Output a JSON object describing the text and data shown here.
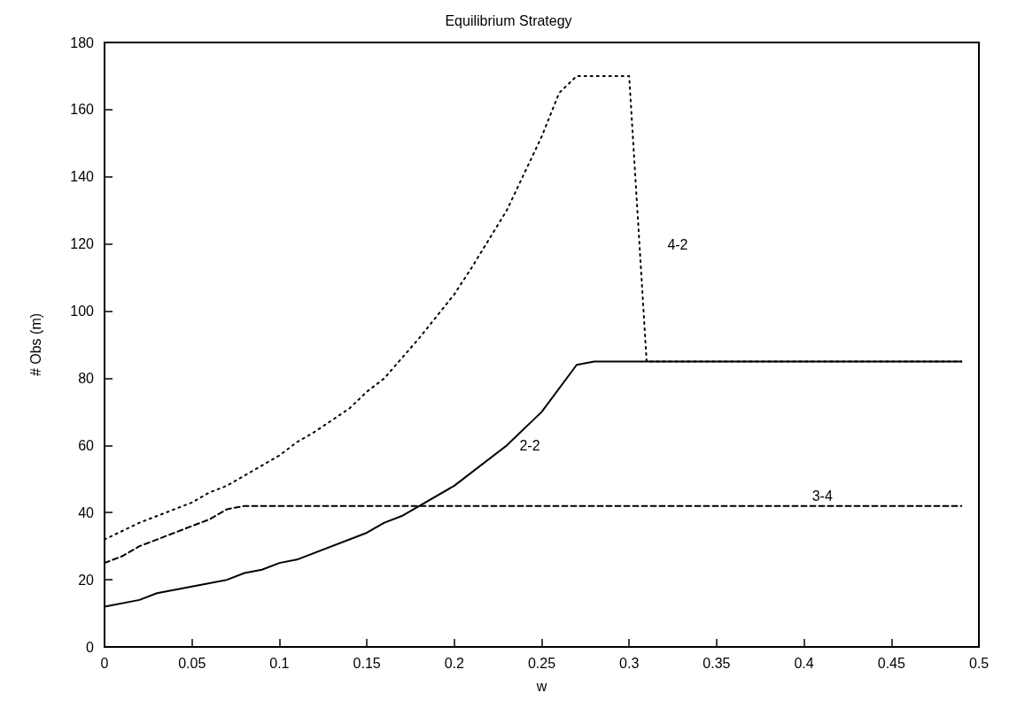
{
  "chart_data": {
    "type": "line",
    "title": "Equilibrium Strategy",
    "xlabel": "w",
    "ylabel": "# Obs (m)",
    "xlim": [
      0,
      0.5
    ],
    "xticks": [
      0,
      0.05,
      0.1,
      0.15,
      0.2,
      0.25,
      0.3,
      0.35,
      0.4,
      0.45,
      0.5
    ],
    "ylim": [
      0,
      180
    ],
    "yticks": [
      0,
      20,
      40,
      60,
      80,
      100,
      120,
      140,
      160,
      180
    ],
    "grid": false,
    "marker": "none",
    "series": [
      {
        "name": "2-2",
        "color": "#000000",
        "line_style": "solid",
        "x": [
          0,
          0.02,
          0.03,
          0.05,
          0.07,
          0.08,
          0.09,
          0.1,
          0.11,
          0.15,
          0.16,
          0.17,
          0.2,
          0.23,
          0.25,
          0.27,
          0.28,
          0.49
        ],
        "values": [
          12,
          14,
          16,
          18,
          20,
          22,
          23,
          25,
          26,
          34,
          37,
          39,
          48,
          60,
          70,
          84,
          85,
          85
        ]
      },
      {
        "name": "3-4",
        "color": "#000000",
        "line_style": "dashed",
        "x": [
          0,
          0.01,
          0.02,
          0.03,
          0.06,
          0.07,
          0.08,
          0.49
        ],
        "values": [
          25,
          27,
          30,
          32,
          38,
          41,
          42,
          42
        ]
      },
      {
        "name": "4-2",
        "color": "#000000",
        "line_style": "dotted",
        "x": [
          0,
          0.02,
          0.05,
          0.06,
          0.07,
          0.1,
          0.11,
          0.12,
          0.14,
          0.15,
          0.16,
          0.18,
          0.2,
          0.21,
          0.23,
          0.25,
          0.26,
          0.27,
          0.3,
          0.31,
          0.49
        ],
        "values": [
          32,
          37,
          43,
          46,
          48,
          57,
          61,
          64,
          71,
          76,
          80,
          92,
          105,
          113,
          130,
          152,
          165,
          170,
          170,
          85,
          85
        ]
      }
    ]
  }
}
